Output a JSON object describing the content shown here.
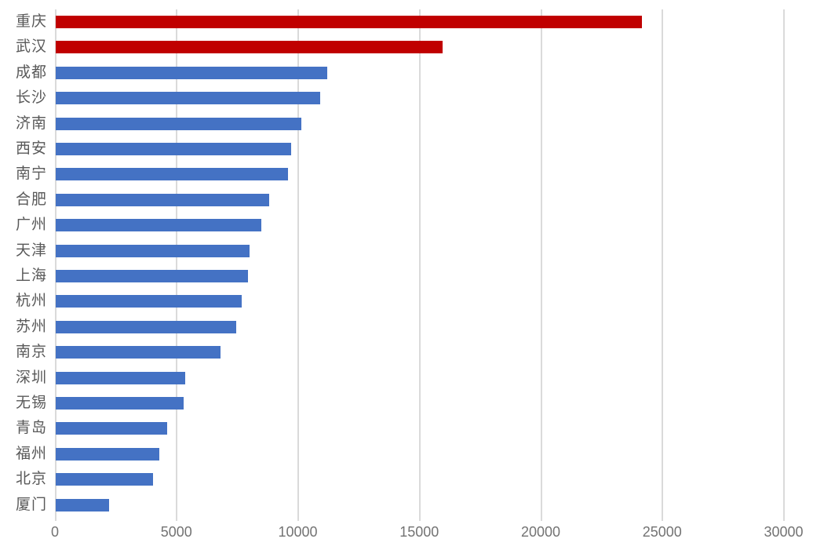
{
  "chart_data": {
    "type": "bar",
    "orientation": "horizontal",
    "title": "",
    "xlabel": "",
    "ylabel": "",
    "categories": [
      "重庆",
      "武汉",
      "成都",
      "长沙",
      "济南",
      "西安",
      "南宁",
      "合肥",
      "广州",
      "天津",
      "上海",
      "杭州",
      "苏州",
      "南京",
      "深圳",
      "无锡",
      "青岛",
      "福州",
      "北京",
      "厦门"
    ],
    "values": [
      24130,
      15920,
      11180,
      10900,
      10100,
      9680,
      9550,
      8800,
      8470,
      7970,
      7910,
      7650,
      7430,
      6790,
      5320,
      5280,
      4580,
      4270,
      4020,
      2190
    ],
    "bar_colors": [
      "#C00000",
      "#C00000",
      "#4472C4",
      "#4472C4",
      "#4472C4",
      "#4472C4",
      "#4472C4",
      "#4472C4",
      "#4472C4",
      "#4472C4",
      "#4472C4",
      "#4472C4",
      "#4472C4",
      "#4472C4",
      "#4472C4",
      "#4472C4",
      "#4472C4",
      "#4472C4",
      "#4472C4",
      "#4472C4"
    ],
    "highlight_color": "#C00000",
    "default_color": "#4472C4",
    "xlim": [
      0,
      30000
    ],
    "x_ticks": [
      0,
      5000,
      10000,
      15000,
      20000,
      25000,
      30000
    ],
    "grid": true,
    "gridline_color": "#DADADA",
    "category_label_color": "#595959",
    "tick_label_color": "#737373",
    "legend": "none"
  }
}
